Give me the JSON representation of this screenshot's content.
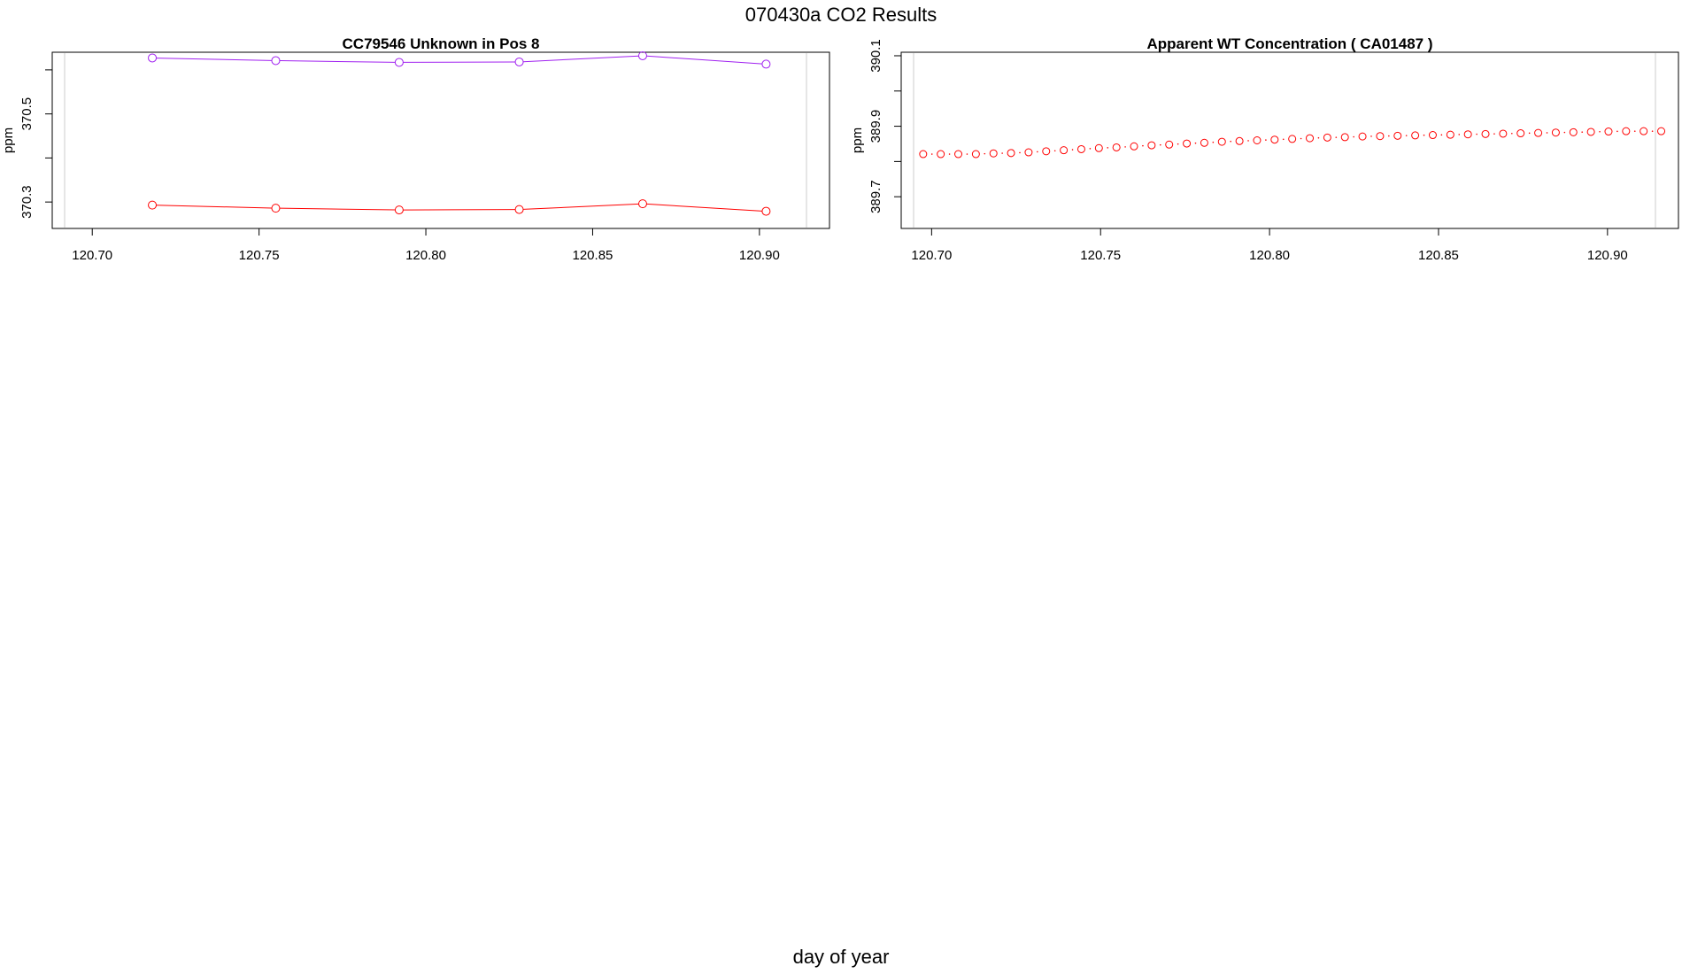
{
  "page": {
    "title": "070430a  CO2 Results",
    "x_caption": "day of year"
  },
  "chart_data": [
    {
      "type": "line",
      "title": "CC79546    Unknown in Pos 8",
      "xlabel": "",
      "ylabel": "ppm",
      "xlim": [
        120.688,
        120.921
      ],
      "ylim": [
        370.24,
        370.64
      ],
      "x_ticks": [
        "120.70",
        "120.75",
        "120.80",
        "120.85",
        "120.90"
      ],
      "y_ticks": [
        "370.3",
        "370.5"
      ],
      "grid": false,
      "series": [
        {
          "color": "#a020f0",
          "x": [
            120.718,
            120.755,
            120.792,
            120.828,
            120.865,
            120.902
          ],
          "values": [
            370.627,
            370.621,
            370.617,
            370.618,
            370.632,
            370.613
          ]
        },
        {
          "color": "#ff0000",
          "x": [
            120.718,
            120.755,
            120.792,
            120.828,
            120.865,
            120.902
          ],
          "values": [
            370.293,
            370.286,
            370.282,
            370.283,
            370.296,
            370.279
          ]
        }
      ]
    },
    {
      "type": "scatter",
      "title": "Apparent WT Concentration ( CA01487 )",
      "xlabel": "",
      "ylabel": "ppm",
      "xlim": [
        120.691,
        120.921
      ],
      "ylim": [
        389.61,
        390.11
      ],
      "x_ticks": [
        "120.70",
        "120.75",
        "120.80",
        "120.85",
        "120.90"
      ],
      "y_ticks": [
        "389.7",
        "389.9",
        "390.1"
      ],
      "grid": false,
      "series": [
        {
          "color": "#ff0000",
          "x": [
            120.6975,
            120.7027,
            120.7079,
            120.7131,
            120.7183,
            120.7235,
            120.7287,
            120.7339,
            120.7391,
            120.7443,
            120.7495,
            120.7547,
            120.7599,
            120.7651,
            120.7703,
            120.7755,
            120.7807,
            120.7859,
            120.7911,
            120.7963,
            120.8015,
            120.8067,
            120.8119,
            120.8171,
            120.8223,
            120.8275,
            120.8327,
            120.8379,
            120.8431,
            120.8483,
            120.8535,
            120.8587,
            120.8639,
            120.8691,
            120.8743,
            120.8795,
            120.8847,
            120.8899,
            120.8951,
            120.9003,
            120.9055,
            120.9107,
            120.9159
          ],
          "values": [
            389.821,
            389.821,
            389.821,
            389.821,
            389.823,
            389.824,
            389.826,
            389.829,
            389.832,
            389.835,
            389.838,
            389.84,
            389.843,
            389.846,
            389.848,
            389.851,
            389.853,
            389.856,
            389.858,
            389.86,
            389.862,
            389.864,
            389.866,
            389.868,
            389.869,
            389.871,
            389.872,
            389.873,
            389.874,
            389.875,
            389.876,
            389.877,
            389.878,
            389.879,
            389.88,
            389.881,
            389.882,
            389.883,
            389.884,
            389.885,
            389.886,
            389.886,
            389.886
          ]
        }
      ]
    }
  ]
}
